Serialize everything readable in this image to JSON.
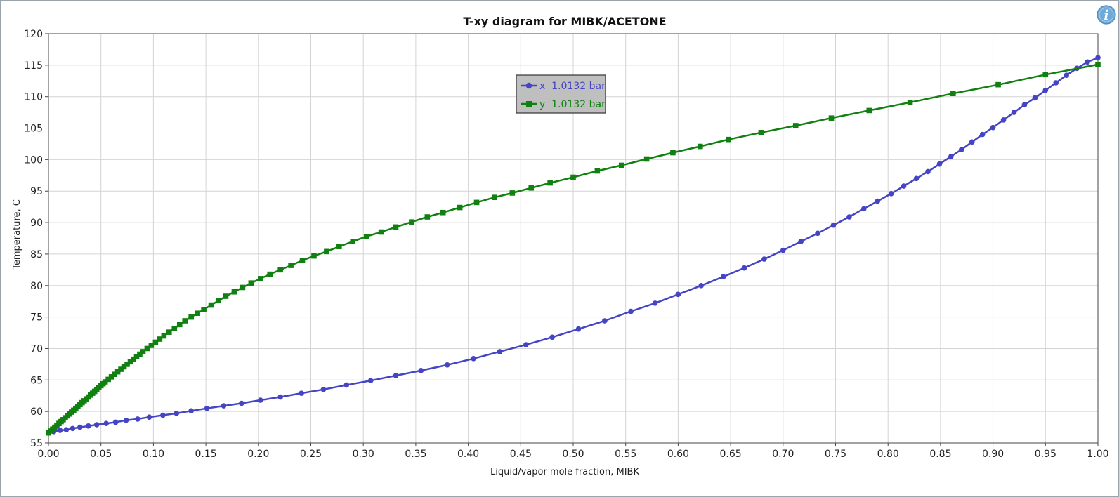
{
  "chart_data": {
    "type": "line",
    "title": "T-xy diagram for MIBK/ACETONE",
    "xlabel": "Liquid/vapor mole fraction, MIBK",
    "ylabel": "Temperature, C",
    "xlim": [
      0.0,
      1.0
    ],
    "ylim": [
      55,
      120
    ],
    "grid": true,
    "legend_position": "upper-center",
    "x_ticks": [
      "0.00",
      "0.05",
      "0.10",
      "0.15",
      "0.20",
      "0.25",
      "0.30",
      "0.35",
      "0.40",
      "0.45",
      "0.50",
      "0.55",
      "0.60",
      "0.65",
      "0.70",
      "0.75",
      "0.80",
      "0.85",
      "0.90",
      "0.95",
      "1.00"
    ],
    "y_ticks": [
      "55",
      "60",
      "65",
      "70",
      "75",
      "80",
      "85",
      "90",
      "95",
      "100",
      "105",
      "110",
      "115",
      "120"
    ],
    "series": [
      {
        "name": "x  1.0132 bar",
        "color": "#4444c4",
        "marker": "circle",
        "x": [
          0.0,
          0.005,
          0.011,
          0.017,
          0.023,
          0.03,
          0.038,
          0.046,
          0.055,
          0.064,
          0.074,
          0.085,
          0.096,
          0.109,
          0.122,
          0.136,
          0.151,
          0.167,
          0.184,
          0.202,
          0.221,
          0.241,
          0.262,
          0.284,
          0.307,
          0.331,
          0.355,
          0.38,
          0.405,
          0.43,
          0.455,
          0.48,
          0.505,
          0.53,
          0.555,
          0.578,
          0.6,
          0.622,
          0.643,
          0.663,
          0.682,
          0.7,
          0.717,
          0.733,
          0.748,
          0.763,
          0.777,
          0.79,
          0.803,
          0.815,
          0.827,
          0.838,
          0.849,
          0.86,
          0.87,
          0.88,
          0.89,
          0.9,
          0.91,
          0.92,
          0.93,
          0.94,
          0.95,
          0.96,
          0.97,
          0.98,
          0.99,
          1.0
        ],
        "y": [
          56.6,
          56.8,
          57.0,
          57.1,
          57.3,
          57.5,
          57.7,
          57.9,
          58.1,
          58.3,
          58.6,
          58.8,
          59.1,
          59.4,
          59.7,
          60.1,
          60.5,
          60.9,
          61.3,
          61.8,
          62.3,
          62.9,
          63.5,
          64.2,
          64.9,
          65.7,
          66.5,
          67.4,
          68.4,
          69.5,
          70.6,
          71.8,
          73.1,
          74.4,
          75.9,
          77.2,
          78.6,
          80.0,
          81.4,
          82.8,
          84.2,
          85.6,
          87.0,
          88.3,
          89.6,
          90.9,
          92.2,
          93.4,
          94.6,
          95.8,
          97.0,
          98.1,
          99.3,
          100.5,
          101.6,
          102.8,
          104.0,
          105.1,
          106.3,
          107.5,
          108.7,
          109.8,
          111.0,
          112.2,
          113.4,
          114.5,
          115.5,
          116.2
        ]
      },
      {
        "name": "y  1.0132 bar",
        "color": "#108010",
        "marker": "square",
        "x": [
          0.0,
          0.002,
          0.004,
          0.006,
          0.008,
          0.01,
          0.012,
          0.014,
          0.016,
          0.018,
          0.02,
          0.022,
          0.024,
          0.026,
          0.028,
          0.03,
          0.032,
          0.034,
          0.036,
          0.038,
          0.04,
          0.042,
          0.044,
          0.046,
          0.048,
          0.05,
          0.052,
          0.054,
          0.057,
          0.06,
          0.063,
          0.066,
          0.069,
          0.072,
          0.075,
          0.078,
          0.081,
          0.084,
          0.087,
          0.09,
          0.094,
          0.098,
          0.102,
          0.106,
          0.11,
          0.115,
          0.12,
          0.125,
          0.13,
          0.136,
          0.142,
          0.148,
          0.155,
          0.162,
          0.169,
          0.177,
          0.185,
          0.193,
          0.202,
          0.211,
          0.221,
          0.231,
          0.242,
          0.253,
          0.265,
          0.277,
          0.29,
          0.303,
          0.317,
          0.331,
          0.346,
          0.361,
          0.376,
          0.392,
          0.408,
          0.425,
          0.442,
          0.46,
          0.478,
          0.5,
          0.523,
          0.546,
          0.57,
          0.595,
          0.621,
          0.648,
          0.679,
          0.712,
          0.746,
          0.782,
          0.821,
          0.862,
          0.905,
          0.95,
          1.0
        ],
        "y": [
          56.6,
          56.9,
          57.2,
          57.5,
          57.8,
          58.1,
          58.4,
          58.7,
          59.0,
          59.3,
          59.6,
          59.9,
          60.2,
          60.5,
          60.8,
          61.1,
          61.4,
          61.7,
          62.0,
          62.3,
          62.6,
          62.9,
          63.2,
          63.5,
          63.8,
          64.1,
          64.4,
          64.7,
          65.1,
          65.5,
          65.9,
          66.3,
          66.7,
          67.1,
          67.5,
          67.9,
          68.3,
          68.7,
          69.1,
          69.5,
          70.0,
          70.5,
          71.0,
          71.5,
          72.0,
          72.6,
          73.2,
          73.8,
          74.4,
          75.0,
          75.6,
          76.2,
          76.9,
          77.6,
          78.3,
          79.0,
          79.7,
          80.4,
          81.1,
          81.8,
          82.5,
          83.2,
          84.0,
          84.7,
          85.4,
          86.2,
          87.0,
          87.8,
          88.5,
          89.3,
          90.1,
          90.9,
          91.6,
          92.4,
          93.2,
          94.0,
          94.7,
          95.5,
          96.3,
          97.2,
          98.2,
          99.1,
          100.1,
          101.1,
          102.1,
          103.2,
          104.3,
          105.4,
          106.6,
          107.8,
          109.1,
          110.5,
          111.9,
          113.5,
          115.1
        ]
      }
    ]
  },
  "ui": {
    "info_glyph": "i",
    "info_icon": "info-icon"
  }
}
